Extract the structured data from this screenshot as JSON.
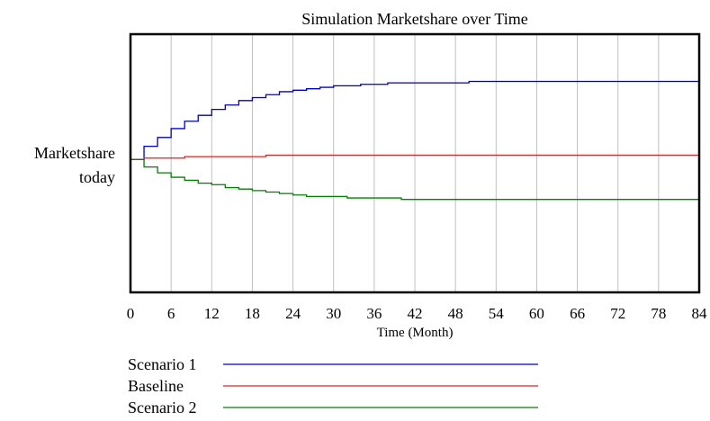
{
  "chart_data": {
    "type": "line",
    "title": "Simulation Marketshare over Time",
    "xlabel": "Time (Month)",
    "ylabel_lines": [
      "Marketshare",
      "today"
    ],
    "xlim": [
      0,
      84
    ],
    "x_ticks": [
      0,
      6,
      12,
      18,
      24,
      30,
      36,
      42,
      48,
      54,
      60,
      66,
      72,
      78,
      84
    ],
    "y_scale": {
      "note": "relative to marketshare today",
      "ylim": [
        -0.9,
        0.85
      ],
      "reference": 0
    },
    "grid": {
      "vertical": true,
      "horizontal": false,
      "color": "#c0c0c0"
    },
    "legend_placement": "bottom",
    "series": [
      {
        "name": "Scenario 1",
        "color": "#0000c0",
        "x": [
          0,
          2,
          4,
          6,
          8,
          10,
          12,
          14,
          16,
          18,
          20,
          22,
          24,
          26,
          28,
          30,
          32,
          34,
          36,
          38,
          40,
          42,
          44,
          46,
          48,
          50,
          60,
          84
        ],
        "y": [
          0,
          0.09,
          0.15,
          0.21,
          0.26,
          0.3,
          0.34,
          0.37,
          0.4,
          0.42,
          0.44,
          0.46,
          0.47,
          0.48,
          0.49,
          0.5,
          0.5,
          0.51,
          0.51,
          0.52,
          0.52,
          0.52,
          0.52,
          0.52,
          0.52,
          0.53,
          0.53,
          0.53
        ]
      },
      {
        "name": "Baseline",
        "color": "#e02020",
        "x": [
          0,
          2,
          4,
          6,
          8,
          12,
          16,
          18,
          20,
          30,
          40,
          60,
          84
        ],
        "y": [
          0,
          0.01,
          0.01,
          0.01,
          0.02,
          0.02,
          0.02,
          0.02,
          0.03,
          0.03,
          0.03,
          0.03,
          0.03
        ]
      },
      {
        "name": "Scenario 2",
        "color": "#008000",
        "x": [
          0,
          2,
          4,
          6,
          8,
          10,
          12,
          14,
          16,
          18,
          20,
          22,
          24,
          26,
          28,
          30,
          32,
          34,
          36,
          38,
          40,
          50,
          60,
          84
        ],
        "y": [
          0,
          -0.05,
          -0.09,
          -0.12,
          -0.14,
          -0.16,
          -0.17,
          -0.19,
          -0.2,
          -0.21,
          -0.22,
          -0.23,
          -0.24,
          -0.25,
          -0.25,
          -0.25,
          -0.26,
          -0.26,
          -0.26,
          -0.26,
          -0.27,
          -0.27,
          -0.27,
          -0.27
        ]
      }
    ]
  }
}
